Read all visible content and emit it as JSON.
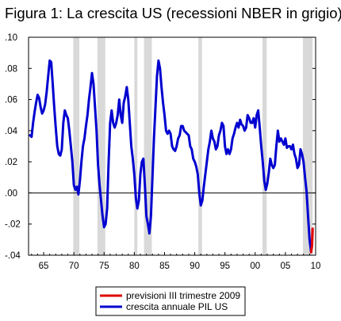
{
  "chart_data": {
    "type": "line",
    "title": "Figura 1: La crescita US (recessioni NBER in grigio)",
    "xlabel": "",
    "ylabel": "",
    "xlim": [
      1962.5,
      2010.0
    ],
    "ylim": [
      -0.04,
      0.1
    ],
    "x_ticks": [
      1965,
      1970,
      1975,
      1980,
      1985,
      1990,
      1995,
      2000,
      2005,
      2010
    ],
    "x_tick_labels": [
      "65",
      "70",
      "75",
      "80",
      "85",
      "90",
      "95",
      "00",
      "05",
      "10"
    ],
    "y_ticks": [
      -0.04,
      -0.02,
      0.0,
      0.02,
      0.04,
      0.06,
      0.08,
      0.1
    ],
    "y_tick_labels": [
      "-.04",
      "-.02",
      ".00",
      ".02",
      ".04",
      ".06",
      ".08",
      ".10"
    ],
    "recessions": [
      [
        1969.9,
        1970.9
      ],
      [
        1973.9,
        1975.2
      ],
      [
        1980.0,
        1980.5
      ],
      [
        1981.6,
        1982.9
      ],
      [
        1990.6,
        1991.2
      ],
      [
        2001.2,
        2001.9
      ],
      [
        2007.9,
        2009.5
      ]
    ],
    "recession_color": "#d9d9d9",
    "zero_line": true,
    "legend_position": "bottom-right",
    "series": [
      {
        "name": "crescita annuale PIL US",
        "color": "#0000d0",
        "points": [
          [
            1962.75,
            0.037
          ],
          [
            1963.0,
            0.036
          ],
          [
            1963.25,
            0.045
          ],
          [
            1963.5,
            0.052
          ],
          [
            1963.75,
            0.058
          ],
          [
            1964.0,
            0.063
          ],
          [
            1964.25,
            0.061
          ],
          [
            1964.5,
            0.055
          ],
          [
            1964.75,
            0.051
          ],
          [
            1965.0,
            0.053
          ],
          [
            1965.25,
            0.057
          ],
          [
            1965.5,
            0.065
          ],
          [
            1965.75,
            0.075
          ],
          [
            1966.0,
            0.085
          ],
          [
            1966.25,
            0.084
          ],
          [
            1966.5,
            0.07
          ],
          [
            1966.75,
            0.055
          ],
          [
            1967.0,
            0.042
          ],
          [
            1967.25,
            0.03
          ],
          [
            1967.5,
            0.025
          ],
          [
            1967.75,
            0.024
          ],
          [
            1968.0,
            0.028
          ],
          [
            1968.25,
            0.045
          ],
          [
            1968.5,
            0.053
          ],
          [
            1968.75,
            0.05
          ],
          [
            1969.0,
            0.048
          ],
          [
            1969.25,
            0.04
          ],
          [
            1969.5,
            0.03
          ],
          [
            1969.75,
            0.02
          ],
          [
            1970.0,
            0.005
          ],
          [
            1970.25,
            0.002
          ],
          [
            1970.5,
            0.004
          ],
          [
            1970.75,
            -0.001
          ],
          [
            1971.0,
            0.008
          ],
          [
            1971.25,
            0.02
          ],
          [
            1971.5,
            0.03
          ],
          [
            1971.75,
            0.035
          ],
          [
            1972.0,
            0.043
          ],
          [
            1972.25,
            0.05
          ],
          [
            1972.5,
            0.06
          ],
          [
            1972.75,
            0.068
          ],
          [
            1973.0,
            0.077
          ],
          [
            1973.25,
            0.07
          ],
          [
            1973.5,
            0.055
          ],
          [
            1973.75,
            0.04
          ],
          [
            1974.0,
            0.018
          ],
          [
            1974.25,
            0.005
          ],
          [
            1974.5,
            -0.005
          ],
          [
            1974.75,
            -0.015
          ],
          [
            1975.0,
            -0.022
          ],
          [
            1975.25,
            -0.02
          ],
          [
            1975.5,
            -0.01
          ],
          [
            1975.75,
            0.02
          ],
          [
            1976.0,
            0.045
          ],
          [
            1976.25,
            0.053
          ],
          [
            1976.5,
            0.045
          ],
          [
            1976.75,
            0.042
          ],
          [
            1977.0,
            0.045
          ],
          [
            1977.25,
            0.05
          ],
          [
            1977.5,
            0.06
          ],
          [
            1977.75,
            0.05
          ],
          [
            1978.0,
            0.045
          ],
          [
            1978.25,
            0.058
          ],
          [
            1978.5,
            0.062
          ],
          [
            1978.75,
            0.068
          ],
          [
            1979.0,
            0.06
          ],
          [
            1979.25,
            0.045
          ],
          [
            1979.5,
            0.03
          ],
          [
            1979.75,
            0.022
          ],
          [
            1980.0,
            0.012
          ],
          [
            1980.25,
            -0.003
          ],
          [
            1980.5,
            -0.01
          ],
          [
            1980.75,
            -0.005
          ],
          [
            1981.0,
            0.012
          ],
          [
            1981.25,
            0.02
          ],
          [
            1981.5,
            0.022
          ],
          [
            1981.75,
            0.005
          ],
          [
            1982.0,
            -0.015
          ],
          [
            1982.25,
            -0.02
          ],
          [
            1982.5,
            -0.026
          ],
          [
            1982.75,
            -0.015
          ],
          [
            1983.0,
            0.01
          ],
          [
            1983.25,
            0.035
          ],
          [
            1983.5,
            0.055
          ],
          [
            1983.75,
            0.075
          ],
          [
            1984.0,
            0.085
          ],
          [
            1984.25,
            0.08
          ],
          [
            1984.5,
            0.068
          ],
          [
            1984.75,
            0.058
          ],
          [
            1985.0,
            0.05
          ],
          [
            1985.25,
            0.04
          ],
          [
            1985.5,
            0.038
          ],
          [
            1985.75,
            0.04
          ],
          [
            1986.0,
            0.038
          ],
          [
            1986.25,
            0.03
          ],
          [
            1986.5,
            0.028
          ],
          [
            1986.75,
            0.027
          ],
          [
            1987.0,
            0.03
          ],
          [
            1987.25,
            0.035
          ],
          [
            1987.5,
            0.037
          ],
          [
            1987.75,
            0.043
          ],
          [
            1988.0,
            0.043
          ],
          [
            1988.25,
            0.04
          ],
          [
            1988.5,
            0.039
          ],
          [
            1988.75,
            0.038
          ],
          [
            1989.0,
            0.037
          ],
          [
            1989.25,
            0.03
          ],
          [
            1989.5,
            0.028
          ],
          [
            1989.75,
            0.022
          ],
          [
            1990.0,
            0.02
          ],
          [
            1990.25,
            0.017
          ],
          [
            1990.5,
            0.012
          ],
          [
            1990.75,
            0.0
          ],
          [
            1991.0,
            -0.008
          ],
          [
            1991.25,
            -0.005
          ],
          [
            1991.5,
            0.004
          ],
          [
            1991.75,
            0.012
          ],
          [
            1992.0,
            0.02
          ],
          [
            1992.25,
            0.028
          ],
          [
            1992.5,
            0.033
          ],
          [
            1992.75,
            0.04
          ],
          [
            1993.0,
            0.035
          ],
          [
            1993.25,
            0.033
          ],
          [
            1993.5,
            0.028
          ],
          [
            1993.75,
            0.03
          ],
          [
            1994.0,
            0.037
          ],
          [
            1994.25,
            0.04
          ],
          [
            1994.5,
            0.045
          ],
          [
            1994.75,
            0.043
          ],
          [
            1995.0,
            0.03
          ],
          [
            1995.25,
            0.025
          ],
          [
            1995.5,
            0.028
          ],
          [
            1995.75,
            0.025
          ],
          [
            1996.0,
            0.028
          ],
          [
            1996.25,
            0.035
          ],
          [
            1996.5,
            0.038
          ],
          [
            1996.75,
            0.042
          ],
          [
            1997.0,
            0.045
          ],
          [
            1997.25,
            0.042
          ],
          [
            1997.5,
            0.047
          ],
          [
            1997.75,
            0.044
          ],
          [
            1998.0,
            0.043
          ],
          [
            1998.25,
            0.04
          ],
          [
            1998.5,
            0.042
          ],
          [
            1998.75,
            0.05
          ],
          [
            1999.0,
            0.048
          ],
          [
            1999.25,
            0.045
          ],
          [
            1999.5,
            0.045
          ],
          [
            1999.75,
            0.048
          ],
          [
            2000.0,
            0.042
          ],
          [
            2000.25,
            0.05
          ],
          [
            2000.5,
            0.053
          ],
          [
            2000.75,
            0.042
          ],
          [
            2001.0,
            0.03
          ],
          [
            2001.25,
            0.02
          ],
          [
            2001.5,
            0.008
          ],
          [
            2001.75,
            0.002
          ],
          [
            2002.0,
            0.006
          ],
          [
            2002.25,
            0.013
          ],
          [
            2002.5,
            0.022
          ],
          [
            2002.75,
            0.018
          ],
          [
            2003.0,
            0.016
          ],
          [
            2003.25,
            0.018
          ],
          [
            2003.5,
            0.03
          ],
          [
            2003.75,
            0.04
          ],
          [
            2004.0,
            0.033
          ],
          [
            2004.25,
            0.035
          ],
          [
            2004.5,
            0.033
          ],
          [
            2004.75,
            0.031
          ],
          [
            2005.0,
            0.035
          ],
          [
            2005.25,
            0.029
          ],
          [
            2005.5,
            0.03
          ],
          [
            2005.75,
            0.03
          ],
          [
            2006.0,
            0.028
          ],
          [
            2006.25,
            0.031
          ],
          [
            2006.5,
            0.025
          ],
          [
            2006.75,
            0.022
          ],
          [
            2007.0,
            0.016
          ],
          [
            2007.25,
            0.018
          ],
          [
            2007.5,
            0.028
          ],
          [
            2007.75,
            0.025
          ],
          [
            2008.0,
            0.02
          ],
          [
            2008.25,
            0.01
          ],
          [
            2008.5,
            0.001
          ],
          [
            2008.75,
            -0.015
          ],
          [
            2009.0,
            -0.03
          ],
          [
            2009.25,
            -0.038
          ]
        ]
      },
      {
        "name": "previsioni III trimestre 2009",
        "color": "#e00000",
        "points": [
          [
            2009.25,
            -0.038
          ],
          [
            2009.4,
            -0.034
          ],
          [
            2009.5,
            -0.023
          ]
        ]
      }
    ]
  }
}
